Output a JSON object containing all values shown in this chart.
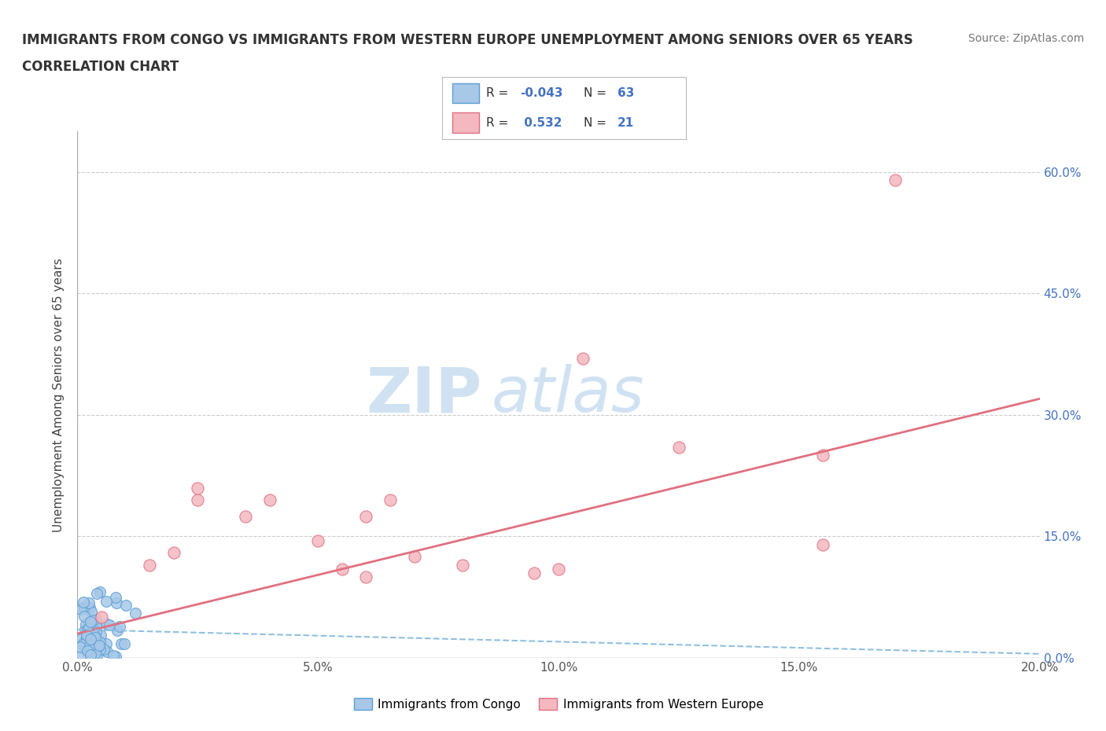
{
  "title_line1": "IMMIGRANTS FROM CONGO VS IMMIGRANTS FROM WESTERN EUROPE UNEMPLOYMENT AMONG SENIORS OVER 65 YEARS",
  "title_line2": "CORRELATION CHART",
  "source_text": "Source: ZipAtlas.com",
  "ylabel": "Unemployment Among Seniors over 65 years",
  "xlim": [
    0,
    0.2
  ],
  "ylim": [
    0,
    0.65
  ],
  "xticks": [
    0.0,
    0.05,
    0.1,
    0.15,
    0.2
  ],
  "yticks": [
    0.0,
    0.15,
    0.3,
    0.45,
    0.6
  ],
  "congo_color": "#a8c8e8",
  "congo_edge_color": "#5a9fd4",
  "we_color": "#f4b8c0",
  "we_edge_color": "#e07080",
  "trend_congo_color": "#90c0e0",
  "trend_we_color": "#e07080",
  "background_color": "#ffffff",
  "grid_color": "#cccccc",
  "r_congo": -0.043,
  "n_congo": 63,
  "r_we": 0.532,
  "n_we": 21,
  "legend_label_congo": "Immigrants from Congo",
  "legend_label_we": "Immigrants from Western Europe",
  "watermark_zip": "ZIP",
  "watermark_atlas": "atlas",
  "we_x": [
    0.005,
    0.015,
    0.02,
    0.025,
    0.025,
    0.035,
    0.04,
    0.05,
    0.055,
    0.06,
    0.06,
    0.065,
    0.07,
    0.08,
    0.095,
    0.1,
    0.105,
    0.125,
    0.155,
    0.17,
    0.155
  ],
  "we_y": [
    0.05,
    0.115,
    0.13,
    0.195,
    0.21,
    0.175,
    0.195,
    0.145,
    0.11,
    0.1,
    0.175,
    0.195,
    0.125,
    0.115,
    0.105,
    0.11,
    0.37,
    0.26,
    0.14,
    0.59,
    0.25
  ],
  "trend_we_x0": 0.0,
  "trend_we_y0": 0.03,
  "trend_we_x1": 0.2,
  "trend_we_y1": 0.32,
  "trend_congo_x0": 0.0,
  "trend_congo_y0": 0.035,
  "trend_congo_x1": 0.2,
  "trend_congo_y1": 0.005
}
